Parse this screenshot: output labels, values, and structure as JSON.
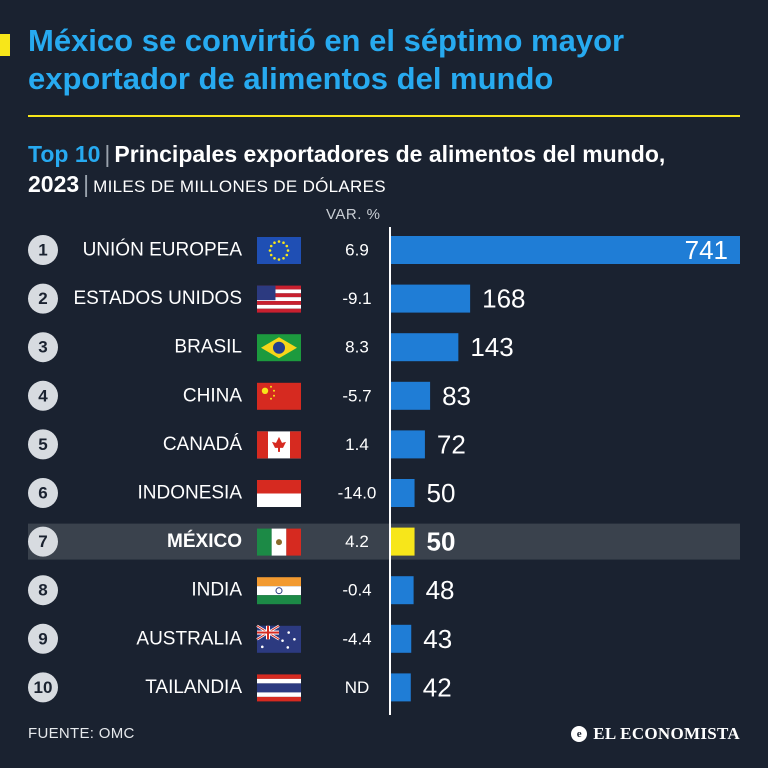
{
  "headline": "México se convirtió en el séptimo mayor exportador de alimentos del mundo",
  "subtitle": {
    "tag": "Top 10",
    "text": "Principales exportadores de alimentos del mundo, 2023",
    "units": "MILES DE MILLONES DE DÓLARES"
  },
  "var_header": "VAR. %",
  "source": "FUENTE: OMC",
  "brand": "EL ECONOMISTA",
  "colors": {
    "background": "#1a2230",
    "bar": "#1f7dd6",
    "highlight_bar": "#f7e61a",
    "highlight_row": "#3a424d",
    "title": "#27aaf0"
  },
  "chart_data": {
    "type": "bar",
    "orientation": "horizontal",
    "title": "Principales exportadores de alimentos del mundo, 2023",
    "units": "Miles de millones de dólares",
    "highlight": "MÉXICO",
    "categories": [
      "UNIÓN EUROPEA",
      "ESTADOS UNIDOS",
      "BRASIL",
      "CHINA",
      "CANADÁ",
      "INDONESIA",
      "MÉXICO",
      "INDIA",
      "AUSTRALIA",
      "TAILANDIA"
    ],
    "ranks": [
      "1",
      "2",
      "3",
      "4",
      "5",
      "6",
      "7",
      "8",
      "9",
      "10"
    ],
    "values": [
      741,
      168,
      143,
      83,
      72,
      50,
      50,
      48,
      43,
      42
    ],
    "var_pct": [
      "6.9",
      "-9.1",
      "8.3",
      "-5.7",
      "1.4",
      "-14.0",
      "4.2",
      "-0.4",
      "-4.4",
      "ND"
    ],
    "flags": [
      "eu-flag-icon",
      "usa-flag-icon",
      "brazil-flag-icon",
      "china-flag-icon",
      "canada-flag-icon",
      "indonesia-flag-icon",
      "mexico-flag-icon",
      "india-flag-icon",
      "australia-flag-icon",
      "thailand-flag-icon"
    ],
    "xlim": [
      0,
      741
    ]
  }
}
